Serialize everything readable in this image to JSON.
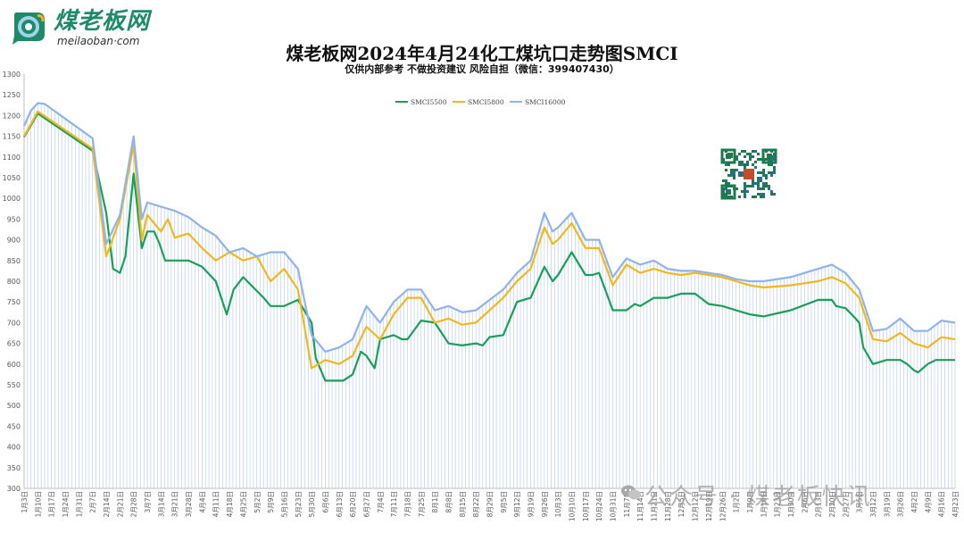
{
  "logo": {
    "name": "煤老板网",
    "domain": "meilaoban·com"
  },
  "watermark": {
    "text": "公众号 · 煤老板快讯"
  },
  "colors": {
    "s5500": "#1aa055",
    "s5800": "#f2b81a",
    "s6000": "#8fb3ec",
    "bar": "#a7c3ee",
    "brand": "#1d8a6a"
  },
  "chart_data": {
    "type": "line",
    "title": "煤老板网2024年4月24化工煤坑口走势图SMCI",
    "subtitle": "仅供内部参考 不做投资建议 风险自担（微信：399407430）",
    "ylim": [
      300,
      1300
    ],
    "yticks": [
      300,
      350,
      400,
      450,
      500,
      550,
      600,
      650,
      700,
      750,
      800,
      850,
      900,
      950,
      1000,
      1050,
      1100,
      1150,
      1200,
      1250,
      1300
    ],
    "legend_position": "top-center",
    "grid": false,
    "x_labels": [
      "1月3日",
      "1月10日",
      "1月17日",
      "1月24日",
      "1月31日",
      "2月7日",
      "2月14日",
      "2月21日",
      "2月28日",
      "3月7日",
      "3月14日",
      "3月21日",
      "3月28日",
      "4月4日",
      "4月11日",
      "4月18日",
      "4月25日",
      "5月2日",
      "5月9日",
      "5月16日",
      "5月23日",
      "5月30日",
      "6月6日",
      "6月13日",
      "6月20日",
      "6月27日",
      "7月4日",
      "7月11日",
      "7月18日",
      "7月25日",
      "8月1日",
      "8月8日",
      "8月15日",
      "8月22日",
      "8月29日",
      "9月5日",
      "9月12日",
      "9月19日",
      "9月26日",
      "10月3日",
      "10月10日",
      "10月17日",
      "10月24日",
      "10月31日",
      "11月7日",
      "11月14日",
      "11月21日",
      "11月28日",
      "12月5日",
      "12月12日",
      "12月19日",
      "12月26日",
      "1月2日",
      "1月9日",
      "1月16日",
      "1月23日",
      "1月30日",
      "2月6日",
      "2月13日",
      "2月20日",
      "2月27日",
      "3月5日",
      "3月12日",
      "3月19日",
      "3月26日",
      "4月2日",
      "4月9日",
      "4月16日",
      "4月23日"
    ],
    "series": [
      {
        "name": "SMCI5500",
        "key": "s5500",
        "values": [
          [
            0,
            1148
          ],
          [
            1,
            1205
          ],
          [
            5,
            1115
          ],
          [
            6,
            965
          ],
          [
            6.5,
            830
          ],
          [
            7,
            820
          ],
          [
            7.4,
            860
          ],
          [
            8,
            1060
          ],
          [
            8.6,
            880
          ],
          [
            9,
            920
          ],
          [
            9.5,
            920
          ],
          [
            9.9,
            890
          ],
          [
            10.3,
            850
          ],
          [
            12,
            850
          ],
          [
            13,
            835
          ],
          [
            14,
            800
          ],
          [
            14.8,
            720
          ],
          [
            15.3,
            780
          ],
          [
            16,
            810
          ],
          [
            17.5,
            760
          ],
          [
            18,
            740
          ],
          [
            19,
            740
          ],
          [
            20,
            755
          ],
          [
            21,
            700
          ],
          [
            21.3,
            615
          ],
          [
            22,
            560
          ],
          [
            23,
            560
          ],
          [
            23.3,
            560
          ],
          [
            24,
            575
          ],
          [
            24.6,
            630
          ],
          [
            25,
            620
          ],
          [
            25.6,
            590
          ],
          [
            26,
            660
          ],
          [
            27,
            670
          ],
          [
            27.6,
            660
          ],
          [
            28,
            660
          ],
          [
            29,
            705
          ],
          [
            30,
            700
          ],
          [
            31,
            650
          ],
          [
            32,
            645
          ],
          [
            33,
            650
          ],
          [
            33.5,
            645
          ],
          [
            34,
            665
          ],
          [
            35,
            670
          ],
          [
            36,
            750
          ],
          [
            37,
            760
          ],
          [
            38,
            835
          ],
          [
            38.6,
            800
          ],
          [
            39,
            815
          ],
          [
            40,
            870
          ],
          [
            41,
            815
          ],
          [
            41.5,
            815
          ],
          [
            42,
            820
          ],
          [
            43,
            730
          ],
          [
            44,
            730
          ],
          [
            44.6,
            745
          ],
          [
            45,
            740
          ],
          [
            46,
            760
          ],
          [
            47,
            760
          ],
          [
            48,
            770
          ],
          [
            49,
            770
          ],
          [
            50,
            745
          ],
          [
            51,
            740
          ],
          [
            52,
            730
          ],
          [
            52.5,
            725
          ],
          [
            53,
            720
          ],
          [
            54,
            715
          ],
          [
            56,
            730
          ],
          [
            58,
            755
          ],
          [
            59,
            755
          ],
          [
            59.3,
            740
          ],
          [
            60,
            735
          ],
          [
            60.5,
            718
          ],
          [
            61,
            700
          ],
          [
            61.3,
            640
          ],
          [
            62,
            600
          ],
          [
            63,
            610
          ],
          [
            64,
            610
          ],
          [
            64.5,
            600
          ],
          [
            65,
            585
          ],
          [
            65.3,
            580
          ],
          [
            66,
            600
          ],
          [
            66.6,
            610
          ],
          [
            67,
            610
          ],
          [
            68,
            610
          ]
        ]
      },
      {
        "name": "SMCI5800",
        "key": "s5800",
        "values": [
          [
            0,
            1150
          ],
          [
            1,
            1210
          ],
          [
            5,
            1120
          ],
          [
            6,
            860
          ],
          [
            7,
            950
          ],
          [
            8,
            1130
          ],
          [
            8.6,
            900
          ],
          [
            9,
            960
          ],
          [
            10,
            920
          ],
          [
            10.5,
            950
          ],
          [
            11,
            905
          ],
          [
            12,
            915
          ],
          [
            13,
            880
          ],
          [
            14,
            850
          ],
          [
            15,
            870
          ],
          [
            16,
            850
          ],
          [
            17,
            860
          ],
          [
            18,
            800
          ],
          [
            19,
            830
          ],
          [
            20,
            780
          ],
          [
            21,
            590
          ],
          [
            22,
            610
          ],
          [
            23,
            600
          ],
          [
            24,
            620
          ],
          [
            25,
            690
          ],
          [
            26,
            660
          ],
          [
            27,
            720
          ],
          [
            28,
            760
          ],
          [
            29,
            760
          ],
          [
            30,
            700
          ],
          [
            31,
            710
          ],
          [
            32,
            695
          ],
          [
            33,
            700
          ],
          [
            34,
            730
          ],
          [
            35,
            760
          ],
          [
            36,
            800
          ],
          [
            37,
            830
          ],
          [
            38,
            930
          ],
          [
            38.6,
            890
          ],
          [
            39,
            900
          ],
          [
            40,
            940
          ],
          [
            41,
            880
          ],
          [
            42,
            880
          ],
          [
            43,
            790
          ],
          [
            44,
            840
          ],
          [
            45,
            820
          ],
          [
            46,
            830
          ],
          [
            47,
            820
          ],
          [
            48,
            815
          ],
          [
            49,
            820
          ],
          [
            50,
            815
          ],
          [
            51,
            810
          ],
          [
            52,
            800
          ],
          [
            53,
            790
          ],
          [
            54,
            785
          ],
          [
            56,
            790
          ],
          [
            58,
            800
          ],
          [
            59,
            810
          ],
          [
            60,
            795
          ],
          [
            61,
            760
          ],
          [
            62,
            660
          ],
          [
            63,
            655
          ],
          [
            64,
            675
          ],
          [
            65,
            650
          ],
          [
            66,
            640
          ],
          [
            67,
            665
          ],
          [
            68,
            660
          ]
        ]
      },
      {
        "name": "SMCI16000",
        "key": "s6000",
        "values": [
          [
            0,
            1175
          ],
          [
            0.5,
            1212
          ],
          [
            1,
            1230
          ],
          [
            1.5,
            1228
          ],
          [
            5,
            1145
          ],
          [
            6,
            890
          ],
          [
            7,
            960
          ],
          [
            8,
            1150
          ],
          [
            8.6,
            950
          ],
          [
            9,
            990
          ],
          [
            10,
            980
          ],
          [
            11,
            970
          ],
          [
            12,
            955
          ],
          [
            13,
            930
          ],
          [
            14,
            910
          ],
          [
            15,
            870
          ],
          [
            16,
            880
          ],
          [
            17,
            860
          ],
          [
            18,
            870
          ],
          [
            19,
            870
          ],
          [
            20,
            830
          ],
          [
            21,
            670
          ],
          [
            22,
            630
          ],
          [
            23,
            640
          ],
          [
            24,
            660
          ],
          [
            25,
            740
          ],
          [
            26,
            700
          ],
          [
            27,
            750
          ],
          [
            28,
            780
          ],
          [
            29,
            780
          ],
          [
            30,
            730
          ],
          [
            31,
            740
          ],
          [
            32,
            725
          ],
          [
            33,
            730
          ],
          [
            34,
            755
          ],
          [
            35,
            780
          ],
          [
            36,
            820
          ],
          [
            37,
            850
          ],
          [
            38,
            965
          ],
          [
            38.6,
            920
          ],
          [
            39,
            930
          ],
          [
            40,
            965
          ],
          [
            41,
            900
          ],
          [
            42,
            900
          ],
          [
            43,
            810
          ],
          [
            44,
            855
          ],
          [
            45,
            840
          ],
          [
            46,
            850
          ],
          [
            47,
            830
          ],
          [
            48,
            825
          ],
          [
            49,
            825
          ],
          [
            50,
            820
          ],
          [
            51,
            815
          ],
          [
            52,
            805
          ],
          [
            53,
            800
          ],
          [
            54,
            800
          ],
          [
            56,
            810
          ],
          [
            58,
            830
          ],
          [
            59,
            840
          ],
          [
            60,
            820
          ],
          [
            61,
            780
          ],
          [
            62,
            680
          ],
          [
            63,
            685
          ],
          [
            64,
            710
          ],
          [
            65,
            680
          ],
          [
            66,
            680
          ],
          [
            67,
            705
          ],
          [
            68,
            700
          ]
        ]
      }
    ],
    "bars_to": "SMCI16000"
  }
}
